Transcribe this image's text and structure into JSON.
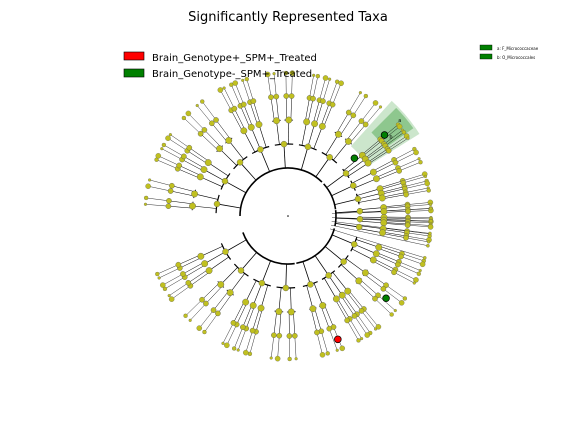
{
  "chart_data": {
    "type": "cladogram",
    "title": "Significantly Represented Taxa",
    "legend": [
      {
        "label": "Brain_Genotype+_SPM+_Treated",
        "color": "#ff0000"
      },
      {
        "label": "Brain_Genotype-_SPM+_Treated",
        "color": "#008000"
      }
    ],
    "clade_legend": [
      {
        "key": "a",
        "label": "a: F_Micrococcaceae",
        "color": "#008000"
      },
      {
        "key": "b",
        "label": "b: O_Micrococcales",
        "color": "#008000"
      }
    ],
    "clade_labels": [
      "a",
      "b"
    ],
    "highlighted_nodes": [
      {
        "name": "a",
        "group": "Brain_Genotype-_SPM+_Treated"
      },
      {
        "name": "b",
        "group": "Brain_Genotype-_SPM+_Treated"
      },
      {
        "name": "",
        "group": "Brain_Genotype-_SPM+_Treated"
      },
      {
        "name": "",
        "group": "Brain_Genotype+_SPM+_Treated"
      }
    ],
    "node_color": "#c0c020",
    "shading_color": "#008000"
  }
}
